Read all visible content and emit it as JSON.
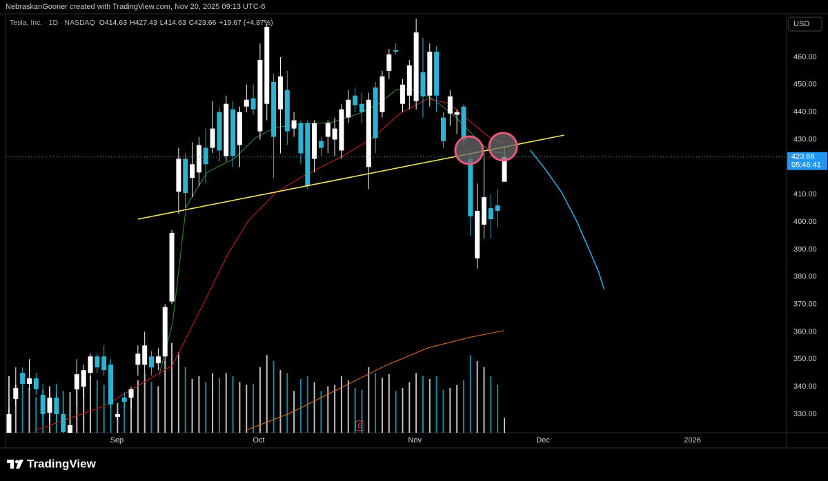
{
  "header": "NebraskanGooner created with TradingView.com, Nov 20, 2025 09:13 UTC-6",
  "footer_brand": "TradingView",
  "chart_data": {
    "type": "candlestick",
    "symbol": "Tesla, Inc. · 1D · NASDAQ",
    "legend_values": [
      "O414.63",
      "H427.43",
      "L414.63",
      "C423.66",
      "+19.67 (+4.87%)"
    ],
    "currency": "USD",
    "countdown": "05:46:41",
    "event_marker": {
      "label": "E",
      "x": 51.7
    },
    "categories": [
      null,
      null,
      null,
      null,
      null,
      null,
      null,
      null,
      null,
      null,
      null,
      null,
      null,
      null,
      null,
      null,
      null,
      null,
      null,
      null,
      null,
      null,
      null,
      null,
      null,
      null,
      null,
      null,
      null,
      null,
      null,
      null,
      null,
      null,
      null,
      null,
      null,
      null,
      null,
      null,
      null,
      null,
      null,
      null,
      null,
      null,
      null,
      null,
      null,
      null,
      null,
      null,
      null,
      null,
      null,
      null,
      null,
      null,
      null,
      null,
      null,
      null,
      null,
      null,
      null,
      null,
      null,
      null,
      null,
      null,
      null,
      null,
      null,
      null
    ],
    "open": [
      323,
      335.5,
      345,
      341,
      343,
      337,
      330.5,
      336,
      330,
      322,
      339,
      340,
      345,
      351,
      351,
      348,
      329,
      336,
      336,
      348,
      348,
      351,
      348.5,
      351,
      371,
      411,
      423,
      416,
      418,
      427,
      427,
      440,
      424,
      441,
      428,
      442,
      445,
      433,
      443,
      451,
      441,
      448,
      434,
      436,
      436,
      423,
      429.5,
      431,
      430,
      426,
      438,
      446,
      443,
      420,
      449,
      440,
      455,
      462.6,
      443,
      446,
      444,
      454.5,
      446,
      462,
      438,
      439.5,
      439,
      442,
      423,
      386.7,
      399,
      405,
      406,
      414.63
    ],
    "high": [
      332,
      347,
      347,
      350,
      345,
      341,
      339,
      338,
      331,
      328,
      350,
      348,
      352,
      352,
      355,
      350,
      331,
      338,
      340,
      355,
      360,
      353,
      354,
      370,
      397,
      427,
      425,
      429,
      431,
      434,
      444,
      442,
      446,
      444,
      442,
      450,
      450,
      465,
      472,
      454,
      460,
      455,
      440,
      437,
      437,
      437,
      431,
      437,
      438,
      443,
      448,
      449,
      447,
      447,
      451,
      455,
      463,
      465,
      452,
      459,
      474,
      467,
      465,
      464,
      440,
      448,
      441,
      443,
      426,
      414,
      425,
      410,
      412,
      427.43
    ],
    "low": [
      322,
      333,
      338,
      339,
      337,
      326,
      327,
      327,
      323,
      320,
      333,
      336,
      343,
      345,
      344,
      332,
      328,
      332,
      332,
      344,
      345,
      344,
      346,
      349,
      370,
      403,
      405,
      409,
      413,
      414,
      425,
      422,
      422,
      420,
      420,
      440,
      439,
      430,
      437,
      416,
      425,
      428,
      431,
      421,
      412,
      418,
      424,
      425,
      424,
      423,
      436,
      440,
      436,
      412,
      425,
      438,
      452,
      461,
      440,
      441,
      441,
      438,
      442,
      440,
      427,
      435,
      432,
      428,
      395,
      383,
      394,
      394,
      398,
      414.63
    ],
    "close": [
      330,
      339.5,
      341,
      343,
      339,
      330,
      336,
      330,
      323.5,
      326,
      344.5,
      346,
      351,
      347,
      346,
      333.5,
      330,
      334.5,
      339,
      352,
      355,
      347,
      351,
      369,
      396,
      423,
      410.5,
      421,
      428,
      421,
      434,
      426,
      443,
      424,
      440,
      444.5,
      441,
      459,
      471,
      431,
      453,
      433,
      437,
      425,
      413,
      436,
      427,
      436,
      434,
      441,
      444.5,
      442.5,
      440,
      444.5,
      430.5,
      453,
      461,
      462,
      450,
      457,
      469,
      445.7,
      462,
      446,
      429.4,
      445.7,
      440,
      430,
      402,
      404,
      409,
      401,
      404,
      423.66
    ],
    "up_color": "#ffffff",
    "down_color": "#2ab3d3",
    "volume": [
      95,
      80,
      70,
      75,
      60,
      72,
      78,
      82,
      70,
      68,
      85,
      90,
      95,
      88,
      80,
      92,
      50,
      60,
      72,
      88,
      100,
      85,
      78,
      120,
      150,
      135,
      110,
      90,
      95,
      85,
      100,
      92,
      100,
      95,
      85,
      80,
      82,
      110,
      130,
      120,
      105,
      100,
      70,
      90,
      95,
      85,
      70,
      78,
      80,
      95,
      88,
      75,
      72,
      110,
      100,
      92,
      98,
      70,
      75,
      85,
      100,
      95,
      90,
      95,
      72,
      75,
      80,
      88,
      130,
      120,
      110,
      95,
      80,
      25
    ],
    "xlim": [
      -1.32,
      114.58
    ],
    "xticks": [
      {
        "value": 15.9,
        "label": "Sep"
      },
      {
        "value": 36.8,
        "label": "Oct"
      },
      {
        "value": 59.8,
        "label": "Nov"
      },
      {
        "value": 78.7,
        "label": "Dec"
      },
      {
        "value": 100.7,
        "label": "2026"
      }
    ],
    "ylim": [
      323.2,
      475.8
    ],
    "yticks": [
      {
        "value": 330,
        "label": "330.00"
      },
      {
        "value": 340,
        "label": "340.00"
      },
      {
        "value": 350,
        "label": "350.00"
      },
      {
        "value": 360,
        "label": "360.00"
      },
      {
        "value": 370,
        "label": "370.00"
      },
      {
        "value": 380,
        "label": "380.00"
      },
      {
        "value": 390,
        "label": "390.00"
      },
      {
        "value": 400,
        "label": "400.00"
      },
      {
        "value": 410,
        "label": "410.00"
      },
      {
        "value": 420,
        "label": "420.00"
      },
      {
        "value": 430,
        "label": "430.00"
      },
      {
        "value": 440,
        "label": "440.00"
      },
      {
        "value": 450,
        "label": "450.00"
      },
      {
        "value": 460,
        "label": "460.00"
      }
    ],
    "grid": false,
    "overlays": [
      {
        "color": "#2e7d32",
        "x": [
          22.1,
          24.1,
          26.1,
          29.2,
          33.2,
          36.3,
          39.3,
          43.4,
          47.5,
          51.5,
          54.6,
          57.1,
          59.7,
          62.7,
          65.8,
          68.8,
          70.9,
          72.7
        ],
        "values": [
          344.1,
          362.9,
          405.5,
          418.1,
          423.1,
          430.6,
          434.4,
          435.7,
          436.2,
          439.4,
          443.2,
          448.2,
          448.2,
          444.4,
          438.2,
          430.6,
          425.6,
          425.1
        ]
      },
      {
        "color": "#b71c1c",
        "x": [
          3.8,
          13.9,
          24.1,
          29.2,
          32.2,
          35.3,
          39.3,
          43.4,
          49.5,
          53.6,
          57.6,
          61.7,
          64.8,
          67.8,
          70.9,
          72.9
        ],
        "values": [
          324.0,
          332.8,
          347.8,
          372.9,
          388.0,
          400.5,
          410.6,
          416.8,
          424.4,
          430.6,
          439.4,
          444.9,
          443.2,
          436.9,
          430.6,
          428.6
        ]
      },
      {
        "color": "#d2691e",
        "x": [
          34.8,
          41.4,
          49.5,
          55.6,
          61.7,
          67.8,
          72.9
        ],
        "values": [
          324.0,
          330.3,
          340.3,
          347.8,
          354.1,
          357.9,
          360.4
        ]
      }
    ],
    "trendline": {
      "color": "#f2e35a",
      "x": [
        19.0,
        81.8
      ],
      "values": [
        401.0,
        431.6
      ]
    },
    "circles": {
      "color": "#e8587a",
      "x": [
        67.8,
        72.8
      ],
      "values": [
        426.1,
        427.4
      ]
    },
    "projection": {
      "color": "#29a8e0",
      "x": [
        76.8,
        79.0,
        81.5,
        83.6,
        85.6,
        86.9,
        87.7
      ],
      "values": [
        426.1,
        419.3,
        410.5,
        400.5,
        389.2,
        381.7,
        375.4
      ]
    }
  }
}
